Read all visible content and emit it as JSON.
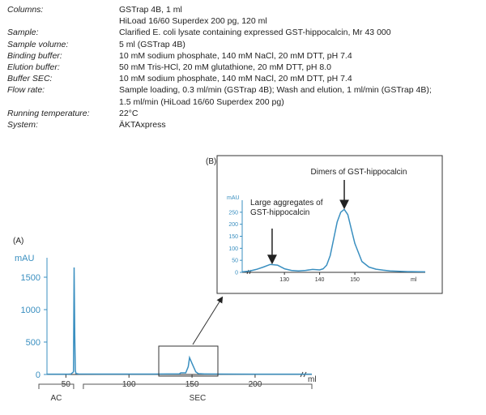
{
  "meta": [
    {
      "key": "Columns:",
      "lines": [
        "GSTrap 4B, 1 ml",
        "HiLoad 16/60 Superdex 200 pg, 120 ml"
      ]
    },
    {
      "key": "Sample:",
      "lines": [
        "Clarified E. coli lysate containing expressed GST-hippocalcin, Mr 43 000"
      ]
    },
    {
      "key": "Sample volume:",
      "lines": [
        "5 ml (GSTrap 4B)"
      ]
    },
    {
      "key": "Binding buffer:",
      "lines": [
        "10 mM sodium phosphate, 140 mM NaCl, 20 mM DTT, pH 7.4"
      ]
    },
    {
      "key": "Elution buffer:",
      "lines": [
        "50 mM Tris-HCl, 20 mM glutathione, 20 mM DTT, pH 8.0"
      ]
    },
    {
      "key": "Buffer SEC:",
      "lines": [
        "10 mM sodium phosphate, 140 mM NaCl, 20 mM DTT, pH 7.4"
      ]
    },
    {
      "key": "Flow rate:",
      "lines": [
        "Sample loading, 0.3 ml/min (GSTrap 4B); Wash and elution, 1 ml/min (GSTrap 4B);",
        "1.5 ml/min (HiLoad 16/60 Superdex 200 pg)"
      ]
    },
    {
      "key": "Running temperature:",
      "lines": [
        "22°C"
      ]
    },
    {
      "key": "System:",
      "lines": [
        "ÄKTAxpress"
      ]
    }
  ],
  "chart_data": [
    {
      "type": "line",
      "panel_label": "(A)",
      "ylabel": "mAU",
      "xlabel": "ml",
      "ylim": [
        0,
        1800
      ],
      "xlim": [
        35,
        245
      ],
      "yticks": [
        0,
        500,
        1000,
        1500
      ],
      "xticks": [
        50,
        100,
        150,
        200
      ],
      "series": [
        {
          "x": [
            35,
            52,
            54,
            56,
            56.5,
            57,
            57.5,
            58,
            60,
            80,
            100,
            120,
            140,
            141,
            145,
            147,
            148,
            150,
            153,
            155,
            160,
            175,
            200,
            245
          ],
          "y": [
            5,
            5,
            8,
            40,
            1650,
            600,
            60,
            15,
            8,
            6,
            6,
            6,
            10,
            25,
            25,
            120,
            260,
            170,
            40,
            12,
            8,
            6,
            5,
            5
          ]
        }
      ],
      "regions": [
        {
          "label": "AC",
          "from": 35,
          "to": 60
        },
        {
          "label": "SEC",
          "from": 60,
          "to": 245
        }
      ]
    },
    {
      "type": "line",
      "panel_label": "(B)",
      "ylabel": "mAU",
      "xlabel": "ml",
      "ylim": [
        0,
        300
      ],
      "xlim": [
        118,
        170
      ],
      "yticks": [
        0,
        50,
        100,
        150,
        200,
        250
      ],
      "xticks": [
        130,
        140,
        150
      ],
      "series": [
        {
          "x": [
            118,
            120,
            122,
            124,
            126,
            128,
            130,
            132,
            134,
            136,
            138,
            140,
            141,
            142,
            143,
            144,
            145,
            146,
            147,
            148,
            149,
            150,
            152,
            154,
            156,
            158,
            160,
            165,
            170
          ],
          "y": [
            2,
            5,
            12,
            22,
            33,
            30,
            15,
            8,
            6,
            8,
            12,
            10,
            15,
            30,
            70,
            140,
            210,
            250,
            262,
            240,
            180,
            120,
            45,
            22,
            13,
            9,
            6,
            3,
            2
          ]
        }
      ],
      "annotations": [
        {
          "text": [
            "Large aggregates of",
            "GST-hippocalcin"
          ],
          "x": 126.5,
          "y": 33
        },
        {
          "text": [
            "Dimers of GST-hippocalcin"
          ],
          "x": 147,
          "y": 262
        }
      ]
    }
  ]
}
